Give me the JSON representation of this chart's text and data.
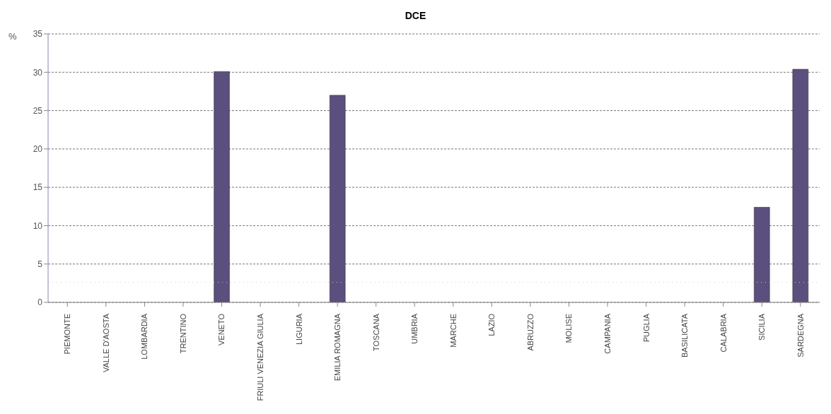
{
  "chart_data": {
    "type": "bar",
    "title": "DCE",
    "ylabel": "%",
    "categories": [
      "PIEMONTE",
      "VALLE D'AOSTA",
      "LOMBARDIA",
      "TRENTINO",
      "VENETO",
      "FRIULI VENEZIA GIULIA",
      "LIGURIA",
      "EMILIA ROMAGNA",
      "TOSCANA",
      "UMBRIA",
      "MARCHE",
      "LAZIO",
      "ABRUZZO",
      "MOLISE",
      "CAMPANIA",
      "PUGLIA",
      "BASILICATA",
      "CALABRIA",
      "SICILIA",
      "SARDEGNA"
    ],
    "values": [
      0,
      0,
      0,
      0,
      30.1,
      0,
      0,
      27.0,
      0,
      0,
      0,
      0,
      0,
      0,
      0,
      0,
      0,
      0,
      12.4,
      30.4
    ],
    "color": "#5b4f7d",
    "ylim": [
      0,
      35
    ],
    "yticks": [
      0,
      5,
      10,
      15,
      20,
      25,
      30,
      35
    ],
    "grid": "y",
    "ref_lines": [
      {
        "axis": "y",
        "value": 2.6,
        "color": "#c8d0c8",
        "line_style": "dotted"
      }
    ]
  }
}
